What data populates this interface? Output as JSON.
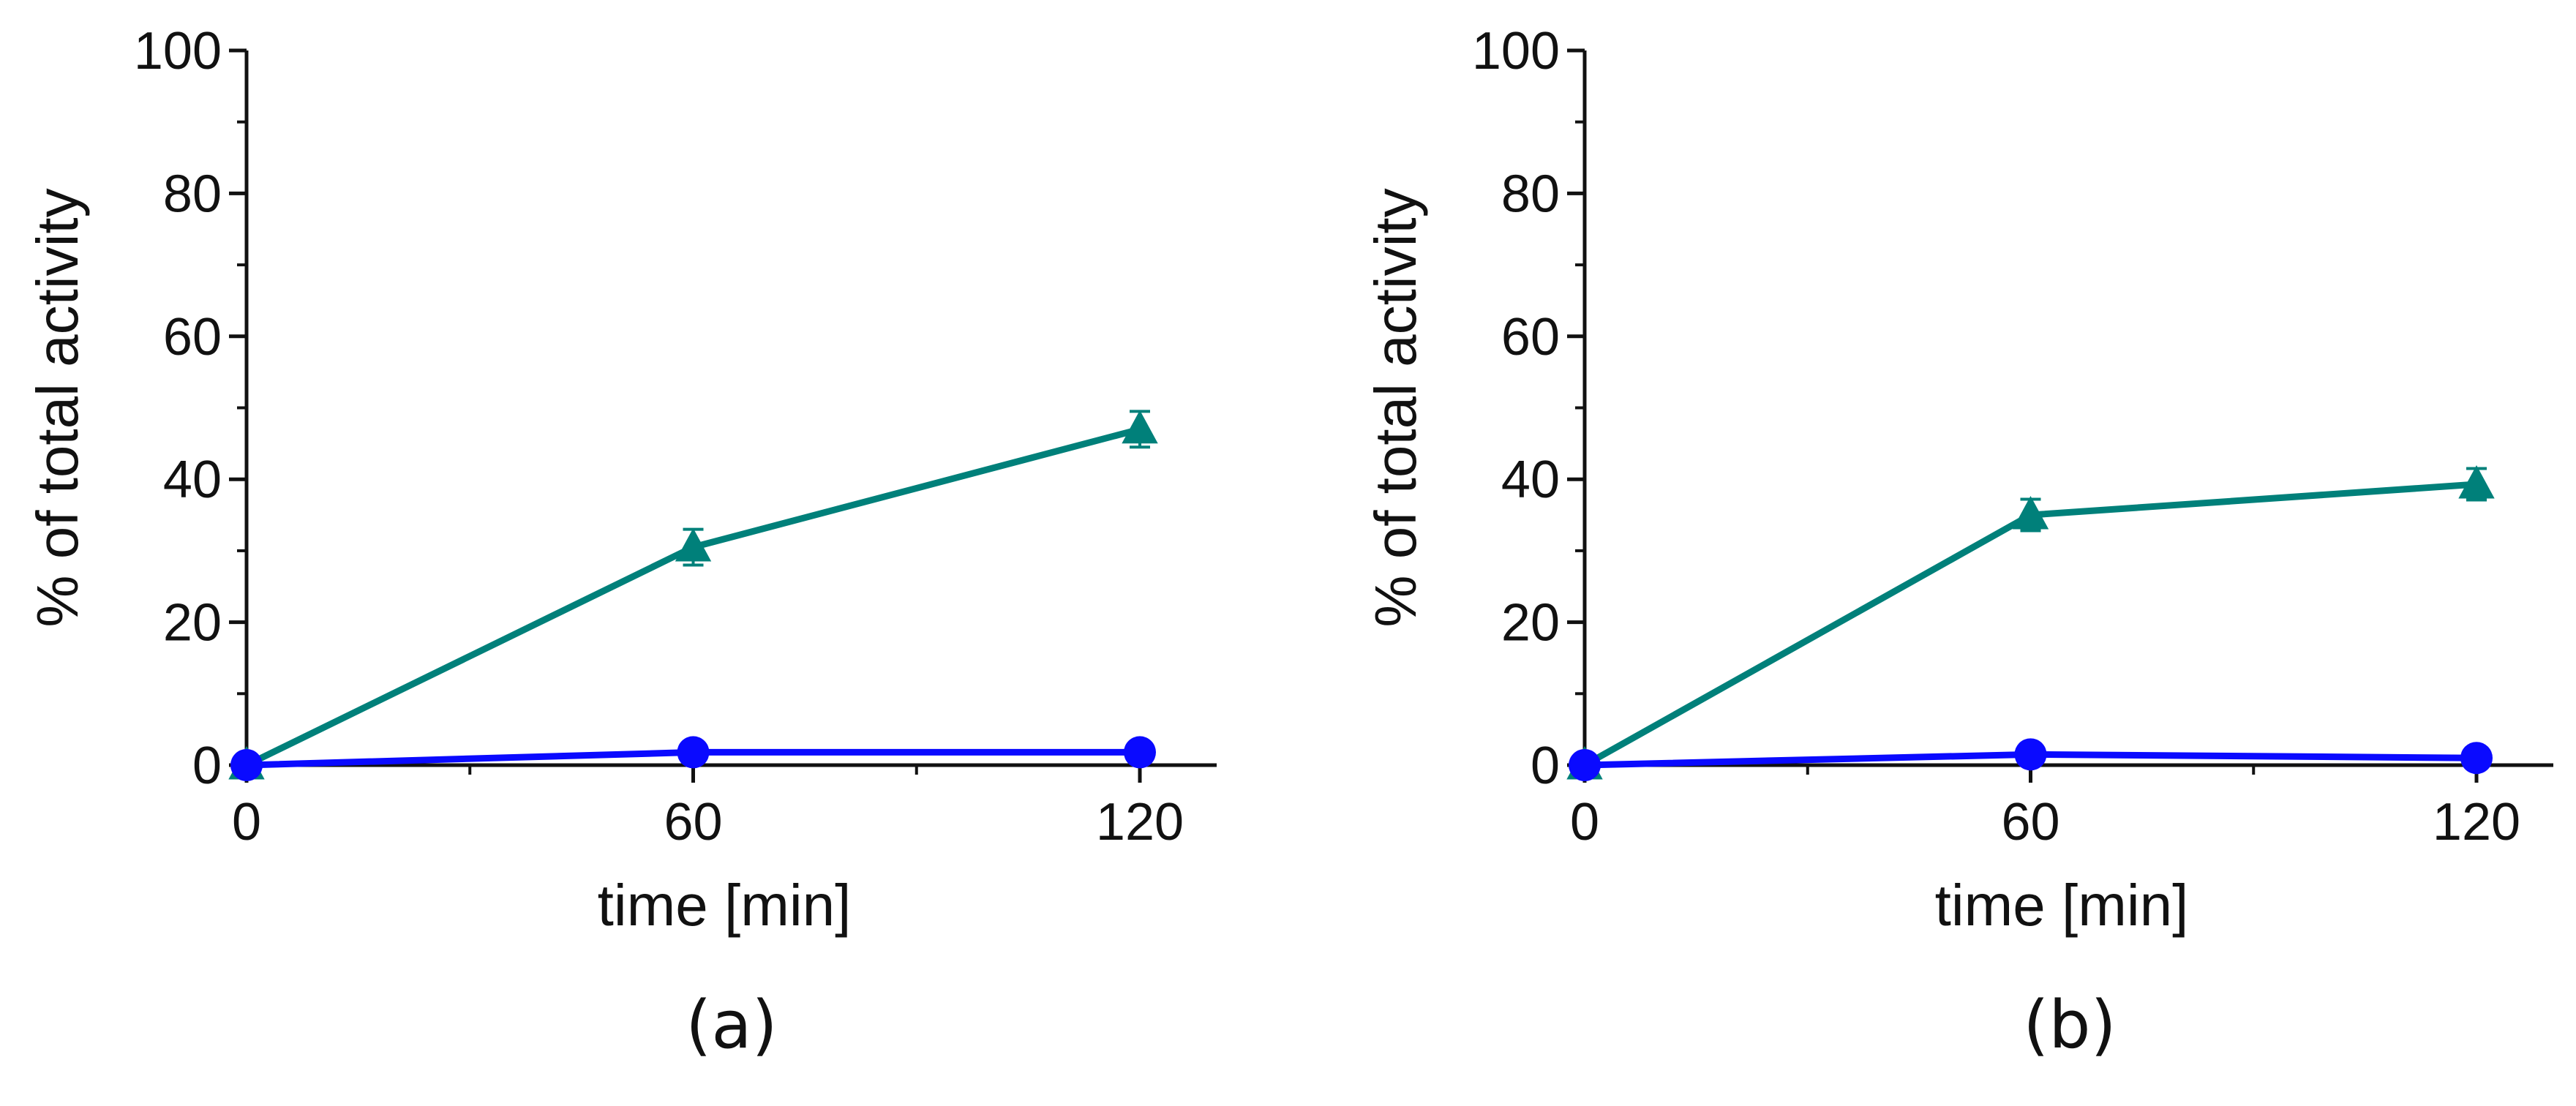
{
  "chart_data": [
    {
      "type": "line",
      "panel_label": "(a)",
      "xlabel": "time [min]",
      "ylabel": "% of total activity",
      "xlim": [
        0,
        130
      ],
      "ylim": [
        0,
        100
      ],
      "xticks": [
        0,
        60,
        120
      ],
      "xtick_labels": [
        "0",
        "60",
        "120"
      ],
      "yticks": [
        0,
        20,
        40,
        60,
        80,
        100
      ],
      "ytick_labels": [
        "0",
        "20",
        "40",
        "60",
        "80",
        "100"
      ],
      "grid": false,
      "series": [
        {
          "name": "teal triangles",
          "marker": "triangle",
          "color": "#00807a",
          "x": [
            0,
            60,
            120
          ],
          "y": [
            0,
            30.5,
            47.0
          ],
          "err": [
            0,
            2.5,
            2.5
          ]
        },
        {
          "name": "blue circles",
          "marker": "circle",
          "color": "#0a0aff",
          "x": [
            0,
            60,
            120
          ],
          "y": [
            0,
            1.8,
            1.8
          ],
          "err": [
            0,
            0,
            0
          ]
        }
      ]
    },
    {
      "type": "line",
      "panel_label": "(b)",
      "xlabel": "time [min]",
      "ylabel": "% of total activity",
      "xlim": [
        0,
        130
      ],
      "ylim": [
        0,
        100
      ],
      "xticks": [
        0,
        60,
        120
      ],
      "xtick_labels": [
        "0",
        "60",
        "120"
      ],
      "yticks": [
        0,
        20,
        40,
        60,
        80,
        100
      ],
      "ytick_labels": [
        "0",
        "20",
        "40",
        "60",
        "80",
        "100"
      ],
      "grid": false,
      "series": [
        {
          "name": "teal triangles",
          "marker": "triangle",
          "color": "#00807a",
          "x": [
            0,
            60,
            120
          ],
          "y": [
            0,
            35.0,
            39.3
          ],
          "err": [
            0,
            2.2,
            2.2
          ]
        },
        {
          "name": "blue circles",
          "marker": "circle",
          "color": "#0a0aff",
          "x": [
            0,
            60,
            120
          ],
          "y": [
            0,
            1.5,
            1.0
          ],
          "err": [
            0,
            0,
            0
          ]
        }
      ]
    }
  ]
}
